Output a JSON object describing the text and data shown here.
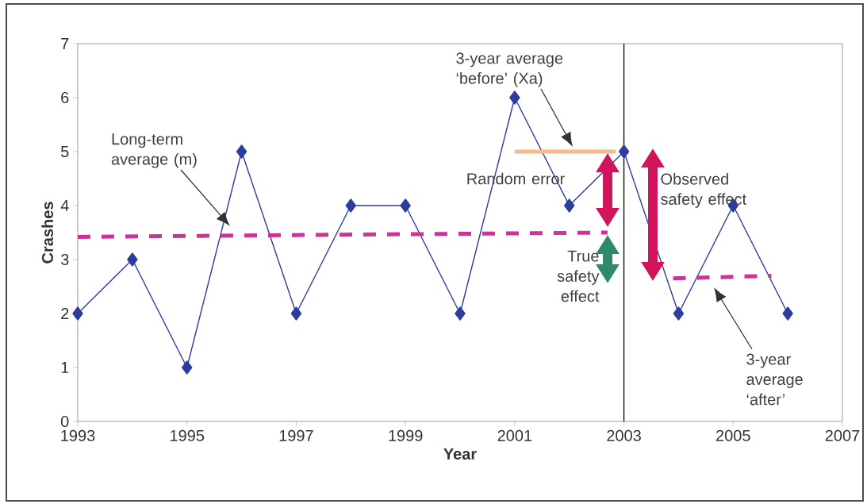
{
  "chart_data": {
    "type": "line",
    "xlabel": "Year",
    "ylabel": "Crashes",
    "xlim": [
      1993,
      2007
    ],
    "ylim": [
      0,
      7
    ],
    "xticks": [
      1993,
      1995,
      1997,
      1999,
      2001,
      2003,
      2005,
      2007
    ],
    "yticks": [
      0,
      1,
      2,
      3,
      4,
      5,
      6,
      7
    ],
    "series": [
      {
        "color": "#2e3c9e",
        "marker": "diamond",
        "x": [
          1993,
          1994,
          1995,
          1996,
          1997,
          1998,
          1999,
          2000,
          2001,
          2002,
          2003,
          2004,
          2005,
          2006
        ],
        "values": [
          2,
          3,
          1,
          5,
          2,
          4,
          4,
          2,
          6,
          4,
          5,
          2,
          4,
          2
        ]
      },
      {
        "color": "#cc3399",
        "line_style": "dashed",
        "marker": "none",
        "x": [
          1993,
          2002.7
        ],
        "values": [
          3.42,
          3.5
        ]
      },
      {
        "color": "#f8b98c",
        "marker": "none",
        "x": [
          2001,
          2002.85
        ],
        "values": [
          5.0,
          5.0
        ]
      },
      {
        "color": "#cc3399",
        "line_style": "dashed",
        "marker": "none",
        "x": [
          2003.9,
          2005.7
        ],
        "values": [
          2.65,
          2.7
        ]
      }
    ],
    "ref_lines": [
      {
        "axis": "x",
        "value": 2003,
        "color": "#000000"
      }
    ],
    "annotations": [
      "Long-term average (m)",
      "3-year average ‘before’ (Xa)",
      "Random error",
      "True safety effect",
      "Observed safety effect",
      "3-year average ‘after’"
    ]
  }
}
